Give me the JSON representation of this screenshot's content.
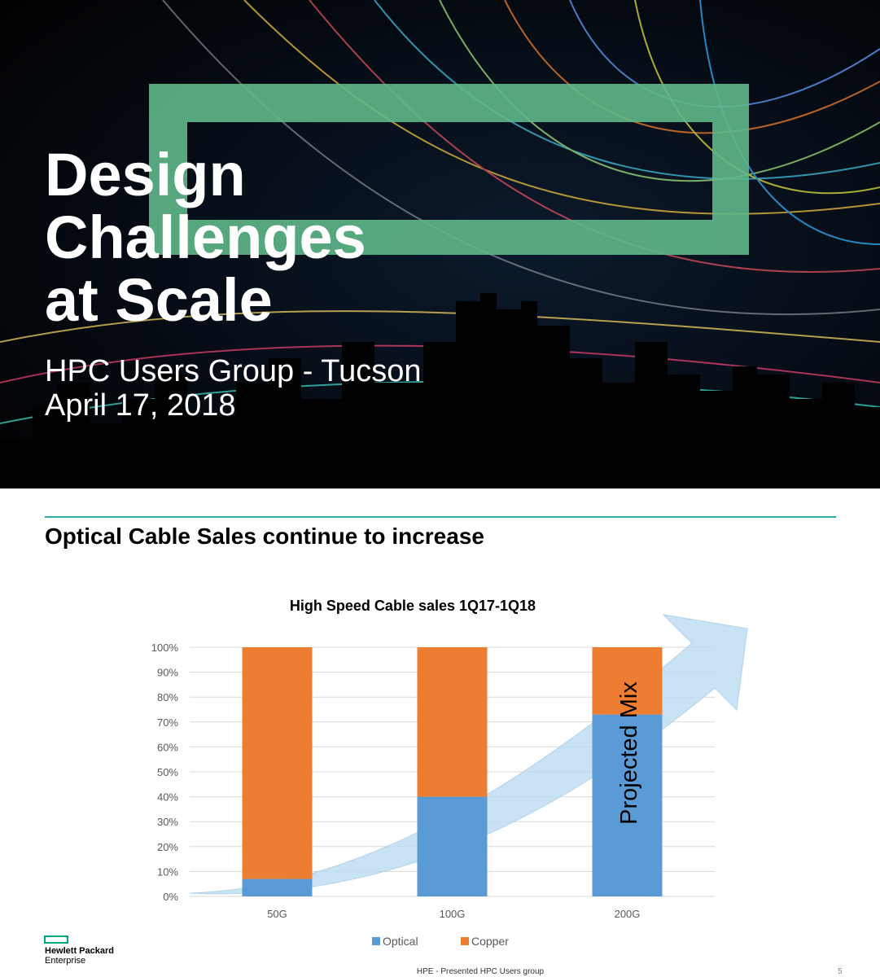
{
  "title_slide": {
    "title_lines": [
      "Design",
      "Challenges",
      "at Scale"
    ],
    "subtitle": "HPC Users Group - Tucson",
    "date": "April 17, 2018"
  },
  "slide": {
    "heading": "Optical Cable Sales continue to increase",
    "logo_lines": [
      "Hewlett Packard",
      "Enterprise"
    ],
    "footer": "HPE - Presented HPC Users group",
    "page_number": "5"
  },
  "chart_data": {
    "type": "stacked_bar",
    "title": "High Speed Cable sales 1Q17-1Q18",
    "categories": [
      "50G",
      "100G",
      "200G"
    ],
    "series": [
      {
        "name": "Optical",
        "color": "#5b9bd5",
        "values": [
          7,
          40,
          73
        ]
      },
      {
        "name": "Copper",
        "color": "#ed7d31",
        "values": [
          93,
          60,
          27
        ]
      }
    ],
    "ylim": [
      0,
      100
    ],
    "yticks": [
      {
        "value": 0,
        "label": "0%"
      },
      {
        "value": 10,
        "label": "10%"
      },
      {
        "value": 20,
        "label": "20%"
      },
      {
        "value": 30,
        "label": "30%"
      },
      {
        "value": 40,
        "label": "40%"
      },
      {
        "value": 50,
        "label": "50%"
      },
      {
        "value": 60,
        "label": "60%"
      },
      {
        "value": 70,
        "label": "70%"
      },
      {
        "value": 80,
        "label": "80%"
      },
      {
        "value": 90,
        "label": "90%"
      },
      {
        "value": 100,
        "label": "100%"
      }
    ],
    "grid": true,
    "legend": "bottom",
    "annotation": "Projected Mix"
  }
}
